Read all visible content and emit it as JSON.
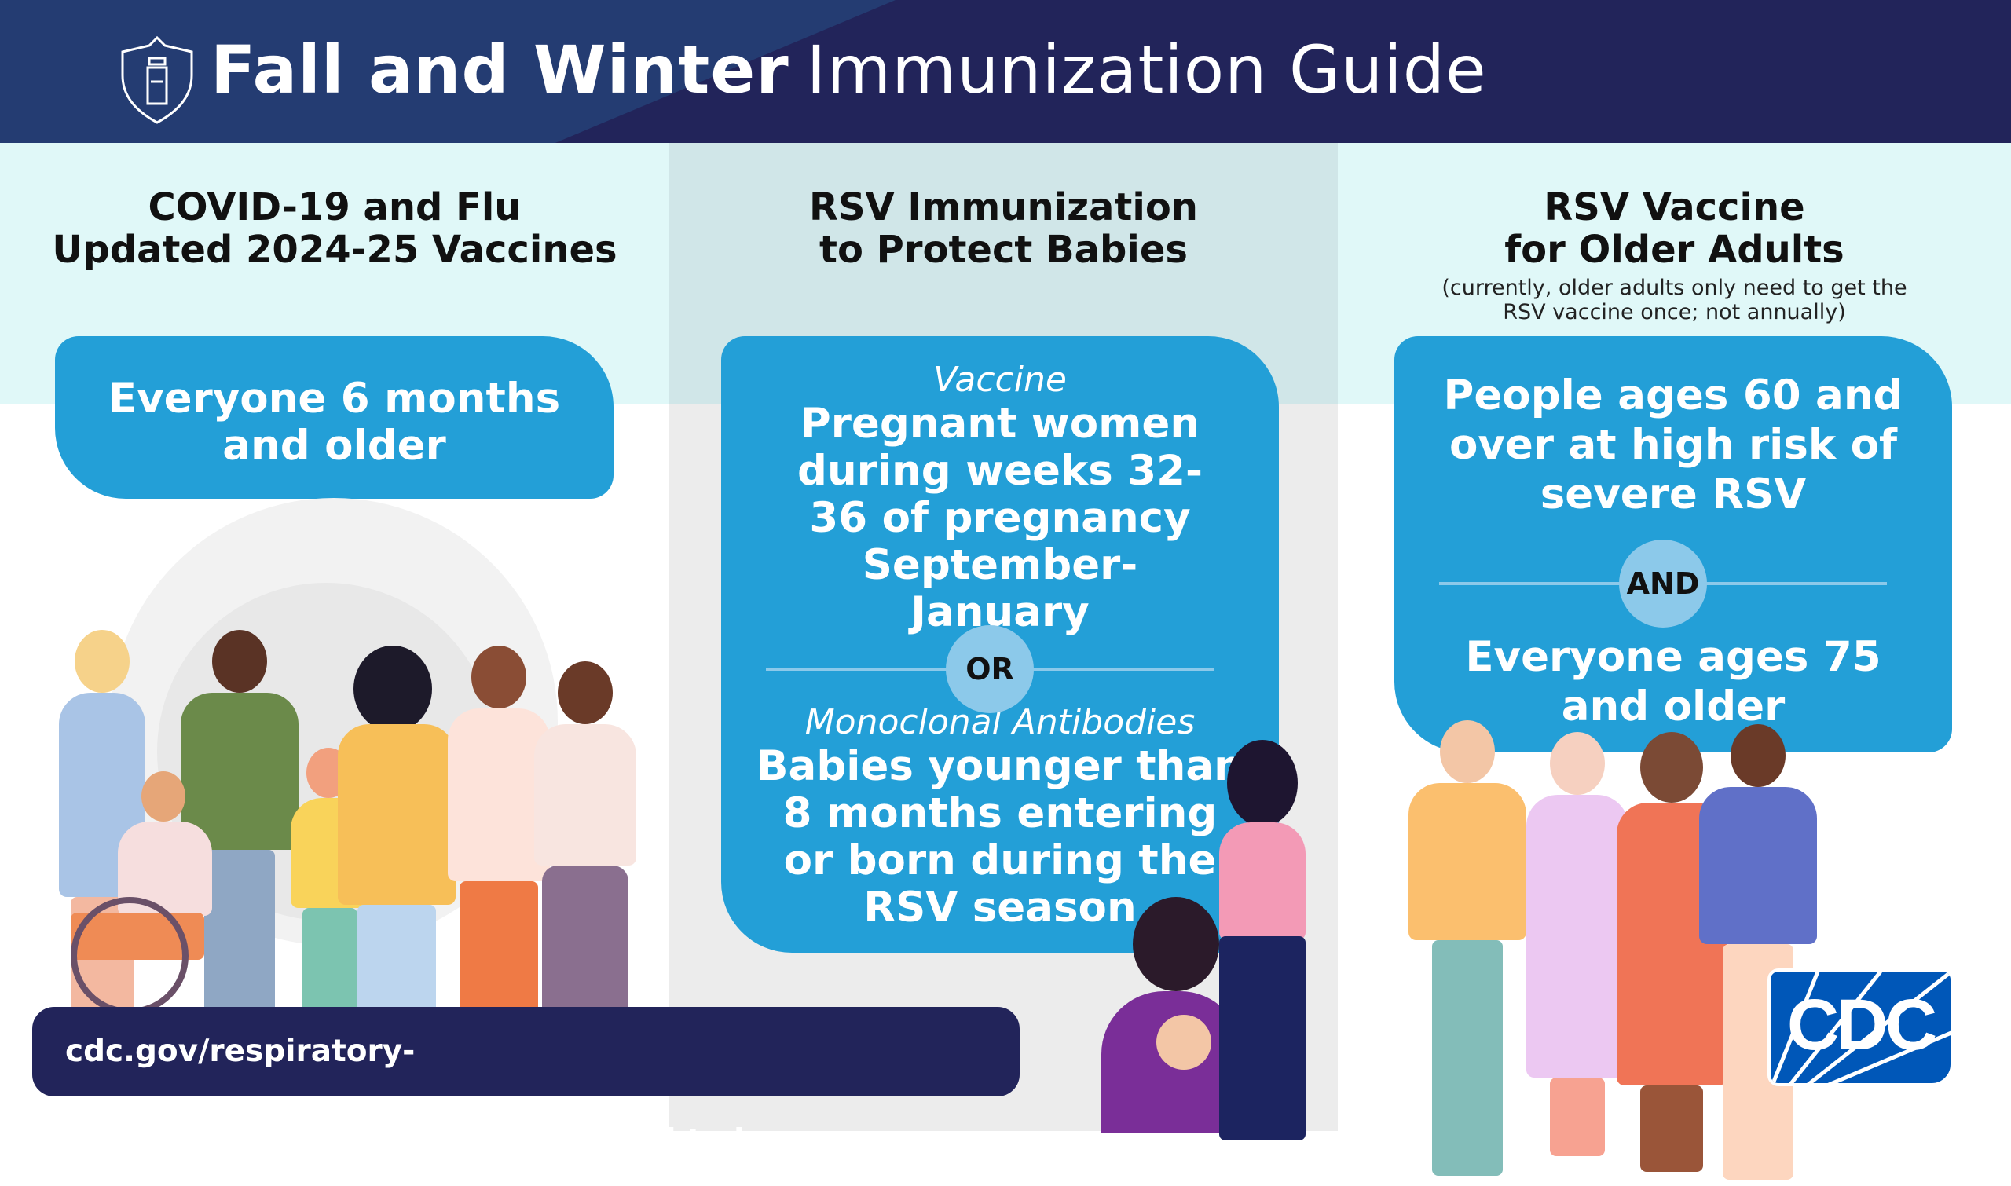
{
  "header": {
    "title_bold": "Fall and Winter",
    "title_light": "Immunization Guide",
    "icon": "shield-vial-icon"
  },
  "columns": [
    {
      "heading_line1": "COVID-19 and Flu",
      "heading_line2": "Updated 2024-25 Vaccines",
      "box_text": "Everyone 6 months and older"
    },
    {
      "heading_line1": "RSV Immunization",
      "heading_line2": "to Protect Babies",
      "option1_label": "Vaccine",
      "option1_text": "Pregnant women during weeks 32-36 of pregnancy September-January",
      "separator": "OR",
      "option2_label": "Monoclonal Antibodies",
      "option2_text": "Babies younger than 8 months entering or born during the RSV season"
    },
    {
      "heading_line1": "RSV Vaccine",
      "heading_line2": "for Older Adults",
      "note": "(currently, older adults only need to get the RSV vaccine once; not annually)",
      "criterion1": "People ages 60 and over at high risk of severe RSV",
      "separator": "AND",
      "criterion2": "Everyone ages 75 and older"
    }
  ],
  "footer": {
    "url": "cdc.gov/respiratory-viruses/prevention/immunizations.html"
  },
  "logo": {
    "text": "CDC"
  },
  "colors": {
    "header_dark": "#22245a",
    "header_light": "#243c72",
    "box_blue": "#239fd7",
    "separator": "#8cc9ea",
    "cdc_blue": "#0057b8"
  }
}
